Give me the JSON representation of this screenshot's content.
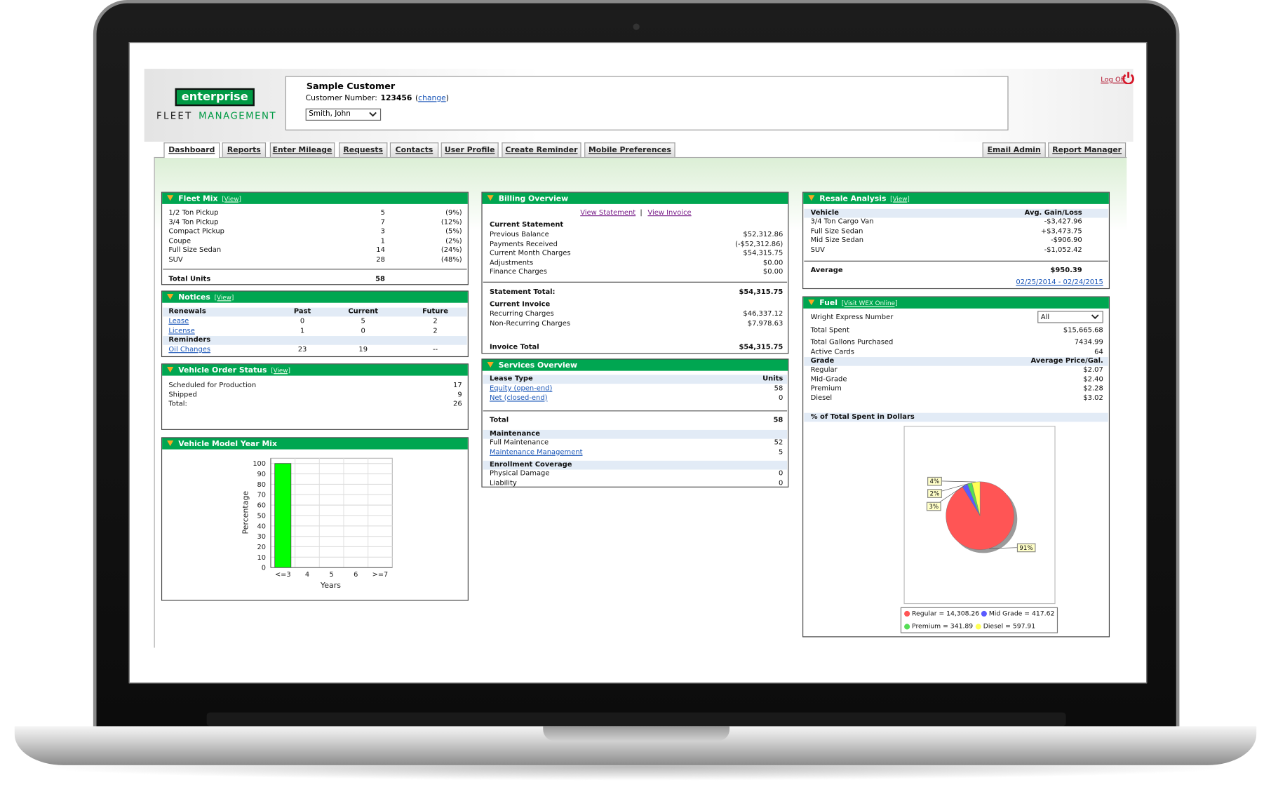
{
  "header": {
    "logo": "enterprise",
    "brand_line1": "FLEET",
    "brand_line2": "MANAGEMENT",
    "customer_name": "Sample Customer",
    "customer_number_label": "Customer Number:",
    "customer_number": 123456,
    "change_open": "(",
    "change_link": "change",
    "change_close": ")",
    "user_select": "Smith, John",
    "log_off": "Log Off"
  },
  "tabs": [
    "Dashboard",
    "Reports",
    "Enter Mileage",
    "Requests",
    "Contacts",
    "User Profile",
    "Create Reminder",
    "Mobile Preferences"
  ],
  "right_tabs": [
    "Email Admin",
    "Report Manager"
  ],
  "fleet_mix": {
    "title": "Fleet Mix",
    "link": "[View]",
    "rows": [
      [
        "1/2 Ton Pickup",
        5,
        "(9%)"
      ],
      [
        "3/4 Ton Pickup",
        7,
        "(12%)"
      ],
      [
        "Compact Pickup",
        3,
        "(5%)"
      ],
      [
        "Coupe",
        1,
        "(2%)"
      ],
      [
        "Full Size Sedan",
        14,
        "(24%)"
      ],
      [
        "SUV",
        28,
        "(48%)"
      ]
    ],
    "total_label": "Total Units",
    "total": 58
  },
  "notices": {
    "title": "Notices",
    "link": "[View]",
    "header": [
      "Renewals",
      "Past",
      "Current",
      "Future"
    ],
    "rows": [
      [
        "Lease",
        0,
        5,
        2
      ],
      [
        "License",
        1,
        0,
        2
      ]
    ],
    "section": "Reminders",
    "reminder_rows": [
      [
        "Oil Changes",
        23,
        19,
        "--"
      ]
    ]
  },
  "vehicle_order_status": {
    "title": "Vehicle Order Status",
    "link": "[View]",
    "rows": [
      [
        "Scheduled for Production",
        17
      ],
      [
        "Shipped",
        9
      ],
      [
        "Total:",
        26
      ]
    ]
  },
  "model_year_mix": {
    "title": "Vehicle Model Year Mix",
    "chart": {
      "type": "bar",
      "categories": [
        "<=3",
        "4",
        "5",
        "6",
        ">=7"
      ],
      "values": [
        100,
        0,
        0,
        0,
        0
      ],
      "color": "#00ff00",
      "ylim": [
        0,
        105
      ],
      "yticks": [
        0,
        10,
        20,
        30,
        40,
        50,
        60,
        70,
        80,
        90,
        100
      ],
      "y_label": "Percentage",
      "x_label": "Years",
      "grid": true
    }
  },
  "billing": {
    "title": "Billing Overview",
    "links": [
      "View Statement",
      "|",
      "View Invoice"
    ],
    "statement_heading": "Current Statement",
    "statement_rows": [
      [
        "Previous Balance",
        "$52,312.86"
      ],
      [
        "Payments Received",
        "(-$52,312.86)"
      ],
      [
        "Current Month Charges",
        "$54,315.75"
      ],
      [
        "Adjustments",
        "$0.00"
      ],
      [
        "Finance Charges",
        "$0.00"
      ]
    ],
    "statement_total": [
      "Statement Total:",
      "$54,315.75"
    ],
    "invoice_heading": "Current Invoice",
    "invoice_rows": [
      [
        "Recurring Charges",
        "$46,337.12"
      ],
      [
        "Non-Recurring Charges",
        "$7,978.63"
      ]
    ],
    "invoice_total": [
      "Invoice Total",
      "$54,315.75"
    ]
  },
  "services": {
    "title": "Services Overview",
    "header": [
      "Lease Type",
      "Units"
    ],
    "lease_rows": [
      [
        "Equity (open-end)",
        58
      ],
      [
        "Net (closed-end)",
        0
      ]
    ],
    "total": [
      "Total",
      58
    ],
    "maintenance_heading": "Maintenance",
    "maintenance_rows": [
      [
        "Full Maintenance",
        52
      ],
      [
        "Maintenance Management",
        5
      ]
    ],
    "coverage_heading": "Enrollment Coverage",
    "coverage_rows": [
      [
        "Physical Damage",
        0
      ],
      [
        "Liability",
        0
      ]
    ]
  },
  "resale": {
    "title": "Resale Analysis",
    "link": "[View]",
    "header": [
      "Vehicle",
      "Avg. Gain/Loss"
    ],
    "rows": [
      [
        "3/4 Ton Cargo Van",
        "-$3,427.96"
      ],
      [
        "Full Size Sedan",
        "+$3,473.75"
      ],
      [
        "Mid Size Sedan",
        "-$906.90"
      ],
      [
        "SUV",
        "-$1,052.42"
      ]
    ],
    "average": [
      "Average",
      "$950.39"
    ],
    "date_range": "02/25/2014 - 02/24/2015"
  },
  "fuel": {
    "title": "Fuel",
    "link": "[Visit WEX Online]",
    "wex_label": "Wright Express Number",
    "wex_select": "All",
    "total_spent": [
      "Total Spent",
      "$15,665.68"
    ],
    "gallons": [
      "Total Gallons Purchased",
      7434.99
    ],
    "cards": [
      "Active Cards",
      64
    ],
    "grade_header": [
      "Grade",
      "Average Price/Gal."
    ],
    "grade_rows": [
      [
        "Regular",
        "$2.07"
      ],
      [
        "Mid-Grade",
        "$2.40"
      ],
      [
        "Premium",
        "$2.28"
      ],
      [
        "Diesel",
        "$3.02"
      ]
    ],
    "chart_heading": "% of Total Spent in Dollars",
    "chart": {
      "type": "pie",
      "values": [
        14308.26,
        417.62,
        341.89,
        597.91
      ],
      "percent_labels": [
        "91%",
        "3%",
        "2%",
        "4%"
      ],
      "legend": [
        "Regular = 14,308.26",
        "Mid Grade = 417.62",
        "Premium = 341.89",
        "Diesel = 597.91"
      ],
      "colors": [
        "#ff5555",
        "#5a5aff",
        "#55dd55",
        "#ffff55"
      ]
    }
  }
}
